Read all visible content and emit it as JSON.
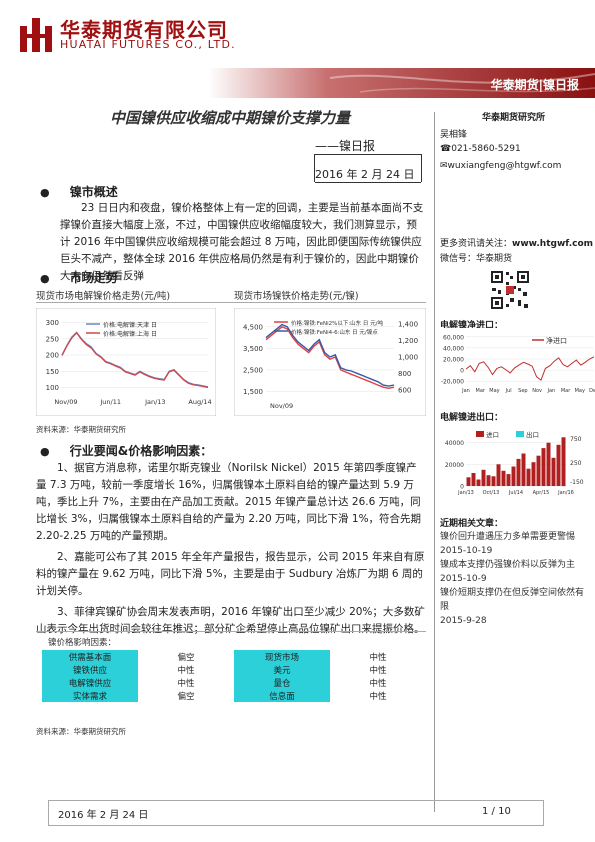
{
  "header": {
    "company_cn": "华泰期货有限公司",
    "company_en": "HUATAI FUTURES CO., LTD.",
    "banner": "华泰期货|镍日报"
  },
  "title": "中国镍供应收缩成中期镍价支撑力量",
  "subtitle": "——镍日报",
  "date": "2016 年 2 月 24 日",
  "sidebar": {
    "institute": "华泰期货研究所",
    "analyst": "吴相锋",
    "phone": "021-5860-5291",
    "email": "wuxiangfeng@htgwf.com",
    "more_info_label": "更多资讯请关注：",
    "website": "www.htgwf.com",
    "wechat_label": "微信号：",
    "wechat": "华泰期货",
    "nickel_import_title": "电解镍净进口：",
    "nickel_export_title": "电解镍进出口：",
    "recent_title": "近期相关文章：",
    "articles": [
      {
        "title": "镍价回升遭遇压力多单需要更警惕",
        "date": "2015-10-19"
      },
      {
        "title": "镍成本支撑仍强镍价料以反弹为主",
        "date": "2015-10-9"
      },
      {
        "title": "镍价短期支撑仍在但反弹空间依然有限",
        "date": "2015-9-28"
      }
    ]
  },
  "section1": {
    "heading": "镍市概述",
    "text": "23 日日内和夜盘，镍价格整体上有一定的回调，主要是当前基本面尚不支撑镍价直接大幅度上涨，不过，中国镍供应收缩幅度较大，我们测算显示，预计 2016 年中国镍供应收缩规模可能会超过 8 万吨，因此即便国际传统镍供应巨头不减产，整体全球 2016 年供应格局仍然是有利于镍价的，因此中期镍价大方向仍然看反弹"
  },
  "section2": {
    "heading": "市场走势",
    "chart1_caption": "现货市场电解镍价格走势(元/吨)",
    "chart2_caption": "现货市场镍铁价格走势(元/镍)",
    "source": "资料来源：华泰期货研究所"
  },
  "section3": {
    "heading": "行业要闻&价格影响因素：",
    "paragraphs": [
      "1、据官方消息称，诺里尔斯克镍业（Norilsk Nickel）2015 年第四季度镍产量 7.3 万吨，较前一季度增长 16%，归属俄镍本土原料自给的镍产量达到 5.9 万吨，季比上升 7%，主要由在产品加工贡献。2015 年镍产量总计达 26.6 万吨，同比增长 3%，归属俄镍本土原料自给的产量为 2.20 万吨，同比下滑 1%，符合先期 2.20-2.25 万吨的产量预期。",
      "2、嘉能可公布了其 2015 年全年产量报告，报告显示，公司 2015 年来自有原料的镍产量在 9.62 万吨，同比下滑 5%，主要是由于 Sudbury 冶炼厂为期 6 周的计划关停。",
      "3、菲律宾镍矿协会周末发表声明，2016 年镍矿出口至少减少 20%；大多数矿山表示今年出货时间会较往年推迟；部分矿企希望停止高品位镍矿出口来提振价格。"
    ],
    "table_caption": "镍价格影响因素：",
    "table": [
      [
        "供需基本面",
        "偏空",
        "现货市场",
        "中性"
      ],
      [
        "镍铁供应",
        "中性",
        "美元",
        "中性"
      ],
      [
        "电解镍供应",
        "中性",
        "量仓",
        "中性"
      ],
      [
        "实体需求",
        "偏空",
        "信息面",
        "中性"
      ]
    ],
    "source": "资料来源：华泰期货研究所"
  },
  "footer": {
    "date": "2016 年 2 月 24 日",
    "page": "1 / 10"
  },
  "chart_data": [
    {
      "type": "line",
      "x_ticks": [
        "Nov/09",
        "Jun/11",
        "Jan/13",
        "Aug/14"
      ],
      "y_ticks": [
        100,
        150,
        200,
        250,
        300
      ],
      "ylim": [
        80,
        320
      ],
      "series": [
        {
          "name": "价格:电解镍:天津 日",
          "color": "#6a86c8",
          "values": [
            200,
            230,
            255,
            270,
            250,
            235,
            225,
            205,
            195,
            180,
            175,
            168,
            162,
            150,
            145,
            140,
            150,
            142,
            135,
            130,
            127,
            125,
            150,
            155,
            140,
            125,
            115,
            110,
            108,
            105,
            102
          ]
        },
        {
          "name": "价格:电解镍:上海 日",
          "color": "#d04848",
          "values": [
            198,
            228,
            252,
            268,
            248,
            232,
            222,
            203,
            193,
            178,
            173,
            166,
            160,
            148,
            143,
            138,
            148,
            140,
            133,
            128,
            125,
            123,
            148,
            153,
            138,
            123,
            113,
            108,
            106,
            103,
            100
          ]
        }
      ]
    },
    {
      "type": "line",
      "x_ticks": [
        "Nov/09"
      ],
      "y_left_ticks": [
        1500,
        2500,
        3500,
        4500
      ],
      "y_right_ticks": [
        600,
        800,
        1000,
        1200,
        1400
      ],
      "series": [
        {
          "name": "价格:镍铁:FeNi2%以下:山东 日 元/吨",
          "color": "#e04040",
          "values": [
            3900,
            4100,
            4300,
            4500,
            4400,
            4000,
            3700,
            3500,
            3300,
            3600,
            3800,
            3200,
            3000,
            3100,
            2500,
            2400,
            2300,
            2200,
            2100,
            2000,
            1900,
            1800,
            1700,
            1650,
            1700
          ]
        },
        {
          "name": "价格:镍铁:FeNi4-6:山东 日 元/镍点",
          "color": "#3a5aa8",
          "values": [
            4000,
            4200,
            4400,
            4600,
            4500,
            4100,
            3800,
            3600,
            3400,
            3700,
            3900,
            3300,
            3100,
            3200,
            2600,
            2500,
            2450,
            2350,
            2250,
            2150,
            2050,
            1950,
            1800,
            1750,
            1800
          ]
        }
      ]
    },
    {
      "type": "bar",
      "title": "电解镍净进口：",
      "x_ticks": [
        "Jan",
        "Mar",
        "May",
        "Jul",
        "Sep",
        "Nov",
        "Jan",
        "Mar",
        "May",
        "Dec"
      ],
      "y_ticks": [
        -20000,
        0,
        20000,
        40000,
        60000
      ],
      "legend": [
        "净进口"
      ],
      "values": [
        2000,
        8000,
        -3000,
        12000,
        15000,
        5000,
        -8000,
        3000,
        6000,
        1000,
        -5000,
        4000,
        9000,
        14000,
        11000,
        7000,
        -12000,
        -18000,
        3000,
        8000,
        16000,
        22000,
        10000,
        6000,
        12000,
        18000,
        9000,
        14000,
        20000,
        24000
      ]
    },
    {
      "type": "bar",
      "title": "电解镍进出口：",
      "x_ticks": [
        "Jan/13",
        "Oct/13",
        "Jul/14",
        "Apr/15",
        "Jan/16"
      ],
      "y_left_ticks": [
        0,
        20000,
        40000
      ],
      "y_right_ticks": [
        -150,
        250,
        750
      ],
      "legend": [
        "进口",
        "出口"
      ],
      "values": [
        8000,
        12000,
        6000,
        15000,
        10000,
        9000,
        20000,
        14000,
        11000,
        18000,
        25000,
        30000,
        16000,
        22000,
        28000,
        35000,
        40000,
        26000,
        38000,
        45000
      ]
    }
  ]
}
